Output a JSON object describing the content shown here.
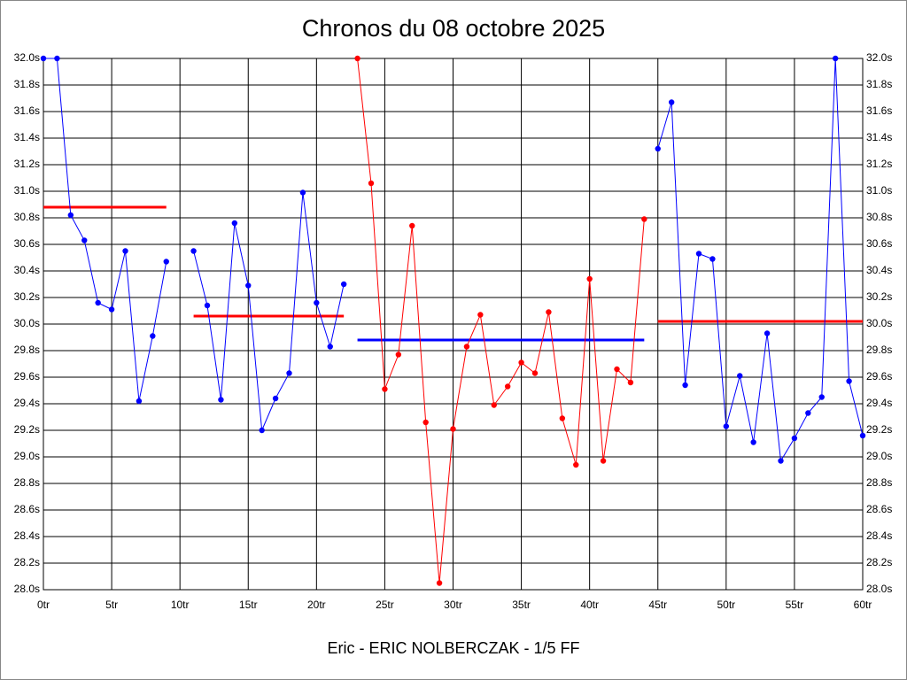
{
  "chart_data": {
    "type": "line",
    "title": "Chronos du 08 octobre 2025",
    "x_label": "Eric - ERIC NOLBERCZAK - 1/5 FF",
    "xlim": [
      0,
      60
    ],
    "xticks": [
      {
        "value": 0,
        "label": "0tr"
      },
      {
        "value": 5,
        "label": "5tr"
      },
      {
        "value": 10,
        "label": "10tr"
      },
      {
        "value": 15,
        "label": "15tr"
      },
      {
        "value": 20,
        "label": "20tr"
      },
      {
        "value": 25,
        "label": "25tr"
      },
      {
        "value": 30,
        "label": "30tr"
      },
      {
        "value": 35,
        "label": "35tr"
      },
      {
        "value": 40,
        "label": "40tr"
      },
      {
        "value": 45,
        "label": "45tr"
      },
      {
        "value": 50,
        "label": "50tr"
      },
      {
        "value": 55,
        "label": "55tr"
      },
      {
        "value": 60,
        "label": "60tr"
      }
    ],
    "ylim": [
      28.0,
      32.0
    ],
    "yticks": [
      {
        "value": 28.0,
        "label": "28.0s"
      },
      {
        "value": 28.2,
        "label": "28.2s"
      },
      {
        "value": 28.4,
        "label": "28.4s"
      },
      {
        "value": 28.6,
        "label": "28.6s"
      },
      {
        "value": 28.8,
        "label": "28.8s"
      },
      {
        "value": 29.0,
        "label": "29.0s"
      },
      {
        "value": 29.2,
        "label": "29.2s"
      },
      {
        "value": 29.4,
        "label": "29.4s"
      },
      {
        "value": 29.6,
        "label": "29.6s"
      },
      {
        "value": 29.8,
        "label": "29.8s"
      },
      {
        "value": 30.0,
        "label": "30.0s"
      },
      {
        "value": 30.2,
        "label": "30.2s"
      },
      {
        "value": 30.4,
        "label": "30.4s"
      },
      {
        "value": 30.6,
        "label": "30.6s"
      },
      {
        "value": 30.8,
        "label": "30.8s"
      },
      {
        "value": 31.0,
        "label": "31.0s"
      },
      {
        "value": 31.2,
        "label": "31.2s"
      },
      {
        "value": 31.4,
        "label": "31.4s"
      },
      {
        "value": 31.6,
        "label": "31.6s"
      },
      {
        "value": 31.8,
        "label": "31.8s"
      },
      {
        "value": 32.0,
        "label": "32.0s"
      }
    ],
    "grid": true,
    "series": [
      {
        "color": "#0000ff",
        "x": [
          0,
          1,
          2,
          3,
          4,
          5,
          6,
          7,
          8,
          9
        ],
        "values": [
          32.0,
          32.0,
          30.82,
          30.63,
          30.16,
          30.11,
          30.55,
          29.42,
          29.91,
          30.47
        ]
      },
      {
        "color": "#0000ff",
        "x": [
          11,
          12,
          13,
          14,
          15,
          16,
          17,
          18,
          19,
          20,
          21,
          22
        ],
        "values": [
          30.55,
          30.14,
          29.43,
          30.76,
          30.29,
          29.2,
          29.44,
          29.63,
          30.99,
          30.16,
          29.83,
          30.3
        ]
      },
      {
        "color": "#ff0000",
        "x": [
          23,
          24,
          25,
          26,
          27,
          28,
          29,
          30,
          31,
          32,
          33,
          34,
          35,
          36,
          37,
          38,
          39,
          40,
          41,
          42,
          43,
          44
        ],
        "values": [
          32.0,
          31.06,
          29.51,
          29.77,
          30.74,
          29.26,
          28.05,
          29.21,
          29.83,
          30.07,
          29.39,
          29.53,
          29.71,
          29.63,
          30.09,
          29.29,
          28.94,
          30.34,
          28.97,
          29.66,
          29.56,
          30.79
        ]
      },
      {
        "color": "#0000ff",
        "x": [
          45,
          46,
          47,
          48,
          49,
          50,
          51,
          52,
          53,
          54,
          55,
          56,
          57,
          58,
          59,
          60
        ],
        "values": [
          31.32,
          31.67,
          29.54,
          30.53,
          30.49,
          29.23,
          29.61,
          29.11,
          29.93,
          28.97,
          29.14,
          29.33,
          29.45,
          32.0,
          29.57,
          29.16
        ]
      }
    ],
    "averages": [
      {
        "color": "#ff0000",
        "x": [
          0,
          9
        ],
        "value": 30.88
      },
      {
        "color": "#ff0000",
        "x": [
          11,
          22
        ],
        "value": 30.06
      },
      {
        "color": "#0000ff",
        "x": [
          23,
          44
        ],
        "value": 29.88
      },
      {
        "color": "#ff0000",
        "x": [
          45,
          60
        ],
        "value": 30.02
      }
    ]
  }
}
